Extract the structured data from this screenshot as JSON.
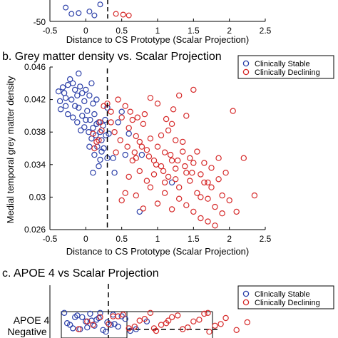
{
  "colors": {
    "stable": "#2b3fa8",
    "declining": "#d62a2a",
    "axis": "#000000"
  },
  "chart_data": [
    {
      "type": "scatter",
      "title": "",
      "xlabel": "Distance to CS Prototype (Scalar Projection)",
      "ylabel": "",
      "xlim": [
        -0.5,
        2.5
      ],
      "x_ticks": [
        "-0.5",
        "0",
        "0.5",
        "1",
        "1.5",
        "2",
        "2.5"
      ],
      "y_ticks": [
        "-50"
      ],
      "threshold_x": 0.3,
      "series": [
        {
          "name": "",
          "values": [
            [
              -0.28,
              -14
            ],
            [
              -0.1,
              -7
            ],
            [
              0.05,
              -9
            ],
            [
              0.2,
              -18
            ],
            [
              -0.2,
              -6
            ],
            [
              0.12,
              -4
            ]
          ]
        },
        {
          "name": "",
          "values": [
            [
              0.42,
              -6
            ],
            [
              0.52,
              -5
            ],
            [
              0.6,
              -4
            ]
          ]
        }
      ]
    },
    {
      "type": "scatter",
      "title": "b. Grey matter density vs. Scalar Projection",
      "xlabel": "Distance to CS Prototype (Scalar Projection)",
      "ylabel": "Medial temporal grey matter density",
      "xlim": [
        -0.5,
        2.5
      ],
      "ylim": [
        0.026,
        0.046
      ],
      "x_ticks": [
        "-0.5",
        "0",
        "0.5",
        "1",
        "1.5",
        "2",
        "2.5"
      ],
      "y_ticks": [
        "0.026",
        "0.03",
        "0.034",
        "0.038",
        "0.042",
        "0.046"
      ],
      "threshold_x": 0.3,
      "legend": {
        "position": "top-right",
        "entries": [
          "Clinically Stable",
          "Clinically Declining"
        ]
      },
      "series": [
        {
          "name": "Clinically Stable",
          "values": [
            [
              -0.38,
              0.043
            ],
            [
              -0.32,
              0.0435
            ],
            [
              -0.3,
              0.0428
            ],
            [
              -0.36,
              0.0418
            ],
            [
              -0.25,
              0.0438
            ],
            [
              -0.22,
              0.0445
            ],
            [
              -0.18,
              0.044
            ],
            [
              -0.35,
              0.0408
            ],
            [
              -0.28,
              0.0412
            ],
            [
              -0.2,
              0.042
            ],
            [
              -0.15,
              0.0432
            ],
            [
              -0.12,
              0.0425
            ],
            [
              -0.08,
              0.0436
            ],
            [
              -0.05,
              0.0428
            ],
            [
              -0.02,
              0.0418
            ],
            [
              0.0,
              0.0432
            ],
            [
              0.05,
              0.0425
            ],
            [
              0.08,
              0.044
            ],
            [
              -0.25,
              0.0402
            ],
            [
              -0.18,
              0.0398
            ],
            [
              -0.1,
              0.041
            ],
            [
              -0.05,
              0.04
            ],
            [
              0.02,
              0.0406
            ],
            [
              0.06,
              0.0395
            ],
            [
              0.1,
              0.0415
            ],
            [
              0.12,
              0.0402
            ],
            [
              0.15,
              0.039
            ],
            [
              -0.12,
              0.0392
            ],
            [
              -0.02,
              0.0386
            ],
            [
              0.04,
              0.038
            ],
            [
              0.1,
              0.0385
            ],
            [
              0.14,
              0.0376
            ],
            [
              0.18,
              0.0392
            ],
            [
              0.2,
              0.038
            ],
            [
              0.22,
              0.037
            ],
            [
              0.08,
              0.0372
            ],
            [
              0.16,
              0.0362
            ],
            [
              0.22,
              0.0356
            ],
            [
              0.12,
              0.0352
            ],
            [
              0.2,
              0.0346
            ],
            [
              0.25,
              0.036
            ],
            [
              -0.15,
              0.0412
            ],
            [
              -0.28,
              0.0422
            ],
            [
              -0.1,
              0.0452
            ],
            [
              0.05,
              0.0362
            ],
            [
              0.18,
              0.0338
            ],
            [
              0.28,
              0.0376
            ],
            [
              0.1,
              0.033
            ],
            [
              0.3,
              0.0348
            ],
            [
              0.24,
              0.0388
            ],
            [
              0.3,
              0.041
            ],
            [
              0.0,
              0.0395
            ],
            [
              -0.07,
              0.0382
            ],
            [
              0.15,
              0.042
            ],
            [
              0.38,
              0.0348
            ],
            [
              0.5,
              0.0405
            ],
            [
              0.55,
              0.0352
            ],
            [
              0.6,
              0.0378
            ],
            [
              0.45,
              0.0392
            ],
            [
              0.78,
              0.0352
            ],
            [
              0.32,
              0.0378
            ],
            [
              1.2,
              0.0318
            ],
            [
              0.75,
              0.0282
            ],
            [
              0.4,
              0.033
            ],
            [
              0.27,
              0.0395
            ]
          ]
        },
        {
          "name": "Clinically Declining",
          "values": [
            [
              0.3,
              0.0415
            ],
            [
              0.35,
              0.0405
            ],
            [
              0.45,
              0.042
            ],
            [
              0.5,
              0.0398
            ],
            [
              0.55,
              0.0412
            ],
            [
              0.6,
              0.0385
            ],
            [
              0.65,
              0.0395
            ],
            [
              0.7,
              0.0375
            ],
            [
              0.75,
              0.0368
            ],
            [
              0.8,
              0.039
            ],
            [
              0.85,
              0.0358
            ],
            [
              0.9,
              0.0372
            ],
            [
              0.95,
              0.0345
            ],
            [
              1.0,
              0.0362
            ],
            [
              1.05,
              0.0338
            ],
            [
              1.1,
              0.0355
            ],
            [
              1.15,
              0.0325
            ],
            [
              1.2,
              0.0345
            ],
            [
              1.25,
              0.0335
            ],
            [
              1.3,
              0.0312
            ],
            [
              1.35,
              0.0368
            ],
            [
              1.4,
              0.033
            ],
            [
              1.45,
              0.032
            ],
            [
              1.5,
              0.0342
            ],
            [
              1.55,
              0.0305
            ],
            [
              1.6,
              0.0328
            ],
            [
              1.65,
              0.0318
            ],
            [
              1.7,
              0.0298
            ],
            [
              1.75,
              0.0312
            ],
            [
              1.8,
              0.0288
            ],
            [
              1.85,
              0.0322
            ],
            [
              1.9,
              0.0302
            ],
            [
              2.0,
              0.0296
            ],
            [
              2.1,
              0.0282
            ],
            [
              2.2,
              0.0348
            ],
            [
              2.35,
              0.0302
            ],
            [
              2.05,
              0.0406
            ],
            [
              1.5,
              0.0432
            ],
            [
              1.3,
              0.0425
            ],
            [
              1.4,
              0.04
            ],
            [
              1.2,
              0.039
            ],
            [
              1.0,
              0.0415
            ],
            [
              0.9,
              0.0422
            ],
            [
              0.7,
              0.0348
            ],
            [
              0.6,
              0.0325
            ],
            [
              0.55,
              0.0305
            ],
            [
              0.5,
              0.0296
            ],
            [
              0.7,
              0.0302
            ],
            [
              0.8,
              0.0286
            ],
            [
              0.9,
              0.0312
            ],
            [
              1.0,
              0.0292
            ],
            [
              1.1,
              0.0305
            ],
            [
              1.2,
              0.0285
            ],
            [
              1.3,
              0.0298
            ],
            [
              1.4,
              0.029
            ],
            [
              1.5,
              0.0282
            ],
            [
              1.6,
              0.0274
            ],
            [
              1.7,
              0.027
            ],
            [
              1.8,
              0.0265
            ],
            [
              1.9,
              0.028
            ],
            [
              1.05,
              0.0376
            ],
            [
              1.15,
              0.0382
            ],
            [
              1.25,
              0.037
            ],
            [
              1.35,
              0.0356
            ],
            [
              1.45,
              0.0348
            ],
            [
              1.55,
              0.0356
            ],
            [
              1.65,
              0.0342
            ],
            [
              1.75,
              0.0336
            ],
            [
              1.85,
              0.0348
            ],
            [
              1.95,
              0.033
            ],
            [
              0.65,
              0.0345
            ],
            [
              0.75,
              0.0332
            ],
            [
              0.85,
              0.032
            ],
            [
              0.95,
              0.0328
            ],
            [
              1.1,
              0.0318
            ],
            [
              1.25,
              0.0322
            ],
            [
              1.6,
              0.03
            ],
            [
              1.7,
              0.0318
            ],
            [
              0.4,
              0.038
            ],
            [
              0.48,
              0.037
            ],
            [
              0.58,
              0.0362
            ],
            [
              0.68,
              0.0355
            ],
            [
              0.78,
              0.0362
            ],
            [
              0.88,
              0.035
            ],
            [
              0.98,
              0.034
            ],
            [
              1.08,
              0.0332
            ],
            [
              1.18,
              0.0352
            ],
            [
              1.28,
              0.0345
            ],
            [
              1.38,
              0.0338
            ],
            [
              1.48,
              0.033
            ],
            [
              0.35,
              0.0392
            ],
            [
              0.42,
              0.0355
            ],
            [
              0.62,
              0.0405
            ],
            [
              0.72,
              0.0398
            ],
            [
              0.82,
              0.0402
            ],
            [
              1.12,
              0.0396
            ],
            [
              1.22,
              0.0408
            ],
            [
              0.18,
              0.037
            ],
            [
              0.22,
              0.0382
            ],
            [
              0.25,
              0.0412
            ],
            [
              0.1,
              0.0378
            ],
            [
              0.15,
              0.0368
            ],
            [
              0.2,
              0.0392
            ],
            [
              0.12,
              0.036
            ]
          ]
        }
      ]
    },
    {
      "type": "scatter",
      "title": "c. APOE 4 vs Scalar Projection",
      "xlabel": "",
      "ylabel": "",
      "xlim": [
        -0.5,
        2.5
      ],
      "y_ticks": [
        "APOE 4",
        "Negative"
      ],
      "threshold_x": 0.3,
      "legend": {
        "position": "top-right",
        "entries": [
          "Clinically Stable",
          "Clinically Declining"
        ]
      },
      "series": [
        {
          "name": "Clinically Stable",
          "values": [
            [
              -0.3,
              0.0
            ],
            [
              -0.22,
              0.0
            ],
            [
              -0.15,
              0.0
            ],
            [
              -0.08,
              0.0
            ],
            [
              0.0,
              0.0
            ],
            [
              0.06,
              0.0
            ],
            [
              0.12,
              0.0
            ],
            [
              0.18,
              0.0
            ],
            [
              0.24,
              0.0
            ],
            [
              0.3,
              0.0
            ],
            [
              0.38,
              0.0
            ],
            [
              0.45,
              0.0
            ],
            [
              0.55,
              0.0
            ],
            [
              0.62,
              0.0
            ],
            [
              -0.26,
              0.0
            ],
            [
              -0.12,
              0.0
            ],
            [
              0.02,
              0.0
            ],
            [
              0.15,
              0.0
            ],
            [
              0.28,
              0.0
            ],
            [
              0.4,
              0.0
            ],
            [
              0.5,
              0.0
            ],
            [
              -0.18,
              0.0
            ],
            [
              0.08,
              0.0
            ],
            [
              0.2,
              0.0
            ],
            [
              0.35,
              0.0
            ],
            [
              -0.05,
              0.0
            ],
            [
              0.7,
              0.0
            ],
            [
              0.85,
              0.0
            ]
          ]
        },
        {
          "name": "Clinically Declining",
          "values": [
            [
              0.32,
              0.0
            ],
            [
              0.45,
              0.0
            ],
            [
              0.6,
              0.0
            ],
            [
              0.75,
              0.0
            ],
            [
              0.9,
              0.0
            ],
            [
              1.05,
              0.0
            ],
            [
              1.2,
              0.0
            ],
            [
              1.35,
              0.0
            ],
            [
              1.5,
              0.0
            ],
            [
              1.65,
              0.0
            ],
            [
              1.8,
              0.0
            ],
            [
              1.95,
              0.0
            ],
            [
              2.1,
              0.0
            ],
            [
              2.25,
              0.0
            ],
            [
              0.52,
              0.0
            ],
            [
              0.68,
              0.0
            ],
            [
              0.82,
              0.0
            ],
            [
              0.98,
              0.0
            ],
            [
              1.12,
              0.0
            ],
            [
              1.28,
              0.0
            ],
            [
              1.42,
              0.0
            ],
            [
              1.58,
              0.0
            ],
            [
              1.72,
              0.0
            ],
            [
              1.88,
              0.0
            ],
            [
              0.38,
              0.0
            ],
            [
              0.95,
              0.0
            ],
            [
              1.15,
              0.0
            ],
            [
              1.7,
              0.0
            ],
            [
              0.1,
              0.0
            ],
            [
              0.2,
              0.0
            ],
            [
              -0.1,
              0.0
            ],
            [
              0.02,
              0.0
            ]
          ]
        }
      ]
    }
  ]
}
